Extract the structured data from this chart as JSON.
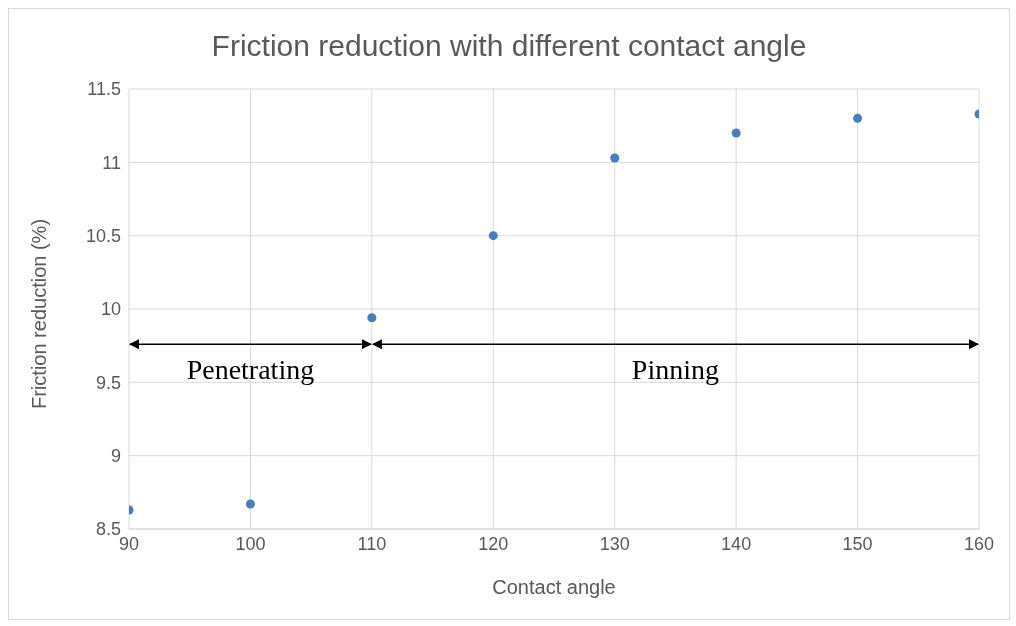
{
  "chart_data": {
    "type": "scatter",
    "title": "Friction reduction with different contact angle",
    "xlabel": "Contact angle",
    "ylabel": "Friction reduction (%)",
    "x": [
      90,
      100,
      110,
      120,
      130,
      140,
      150,
      160
    ],
    "values": [
      8.63,
      8.67,
      9.94,
      10.5,
      11.03,
      11.2,
      11.3,
      11.33
    ],
    "color": "#4a7ebb",
    "marker": "circle",
    "grid": true,
    "xlim": [
      90,
      160
    ],
    "xticks": [
      90,
      100,
      110,
      120,
      130,
      140,
      150,
      160
    ],
    "ylim": [
      8.5,
      11.5
    ],
    "yticks": [
      8.5,
      9,
      9.5,
      10,
      10.5,
      11,
      11.5
    ],
    "annotations": [
      "Penetrating",
      "Pinning"
    ]
  }
}
